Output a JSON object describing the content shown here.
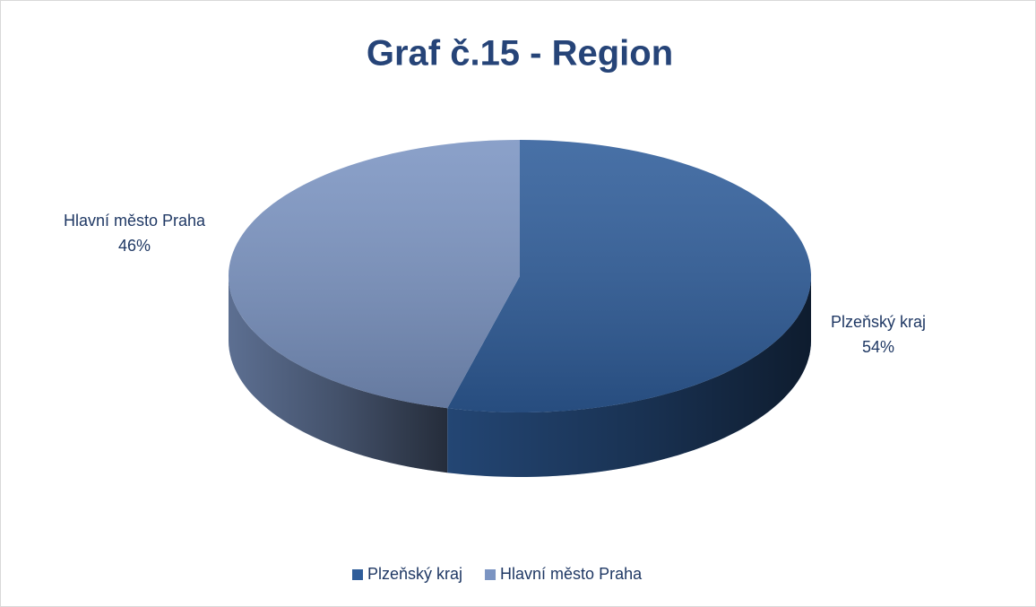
{
  "chart_data": {
    "type": "pie",
    "title": "Graf č.15 - Region",
    "categories": [
      "Plzeňský kraj",
      "Hlavní město Praha"
    ],
    "values": [
      54,
      46
    ],
    "value_labels": [
      "54%",
      "46%"
    ],
    "colors": [
      "#2f5d9a",
      "#7b94c2"
    ],
    "legend": "bottom"
  }
}
